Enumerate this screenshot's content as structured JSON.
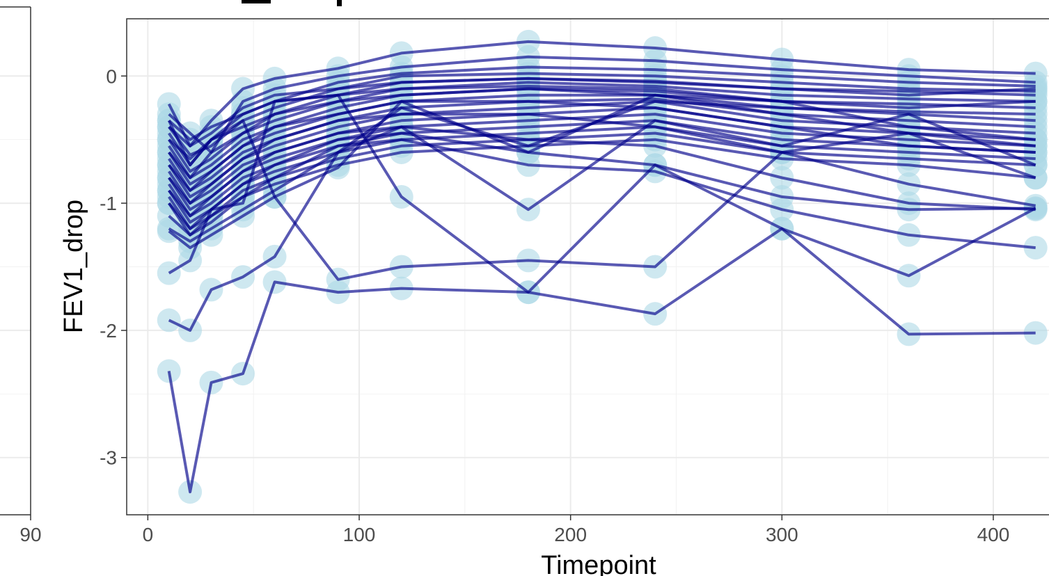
{
  "left_panel": {
    "x_tick_label": "90"
  },
  "chart_data": {
    "type": "line",
    "title": "",
    "xlabel": "Timepoint",
    "ylabel": "FEV1_drop",
    "xlim": [
      -10,
      428
    ],
    "ylim": [
      -3.45,
      0.45
    ],
    "x_ticks": [
      0,
      100,
      200,
      300,
      400
    ],
    "x_tick_labels": [
      "0",
      "100",
      "200",
      "300",
      "400"
    ],
    "y_ticks": [
      0,
      -1,
      -2,
      -3
    ],
    "y_tick_labels": [
      "0",
      "-1",
      "-2",
      "-3"
    ],
    "grid": true,
    "legend": "none",
    "x": [
      10,
      20,
      30,
      45,
      60,
      90,
      120,
      180,
      240,
      300,
      360,
      420
    ],
    "series": [
      {
        "values": [
          -0.22,
          -0.55,
          -0.35,
          -0.1,
          -0.02,
          0.06,
          0.18,
          0.27,
          0.22,
          0.13,
          0.05,
          0.02
        ]
      },
      {
        "values": [
          -0.3,
          -0.45,
          -0.6,
          -0.2,
          -0.1,
          0.0,
          0.07,
          0.15,
          0.12,
          0.05,
          0.0,
          -0.05
        ]
      },
      {
        "values": [
          -0.35,
          -0.5,
          -0.4,
          -0.3,
          -0.2,
          -0.05,
          0.02,
          0.07,
          0.05,
          0.0,
          -0.05,
          -0.08
        ]
      },
      {
        "values": [
          -0.4,
          -0.62,
          -0.55,
          -0.35,
          -0.25,
          -0.1,
          0.0,
          0.02,
          0.0,
          -0.05,
          -0.1,
          -0.12
        ]
      },
      {
        "values": [
          -0.45,
          -0.7,
          -0.5,
          -0.4,
          -0.3,
          -0.15,
          -0.05,
          -0.02,
          -0.04,
          -0.1,
          -0.12,
          -0.15
        ]
      },
      {
        "values": [
          -0.5,
          -0.75,
          -0.65,
          -0.45,
          -0.35,
          -0.2,
          -0.1,
          -0.05,
          -0.08,
          -0.15,
          -0.18,
          -0.2
        ]
      },
      {
        "values": [
          -0.55,
          -0.8,
          -0.7,
          -0.5,
          -0.4,
          -0.25,
          -0.15,
          -0.1,
          -0.12,
          -0.2,
          -0.22,
          -0.25
        ]
      },
      {
        "values": [
          -0.6,
          -0.85,
          -0.75,
          -0.55,
          -0.45,
          -0.3,
          -0.2,
          -0.15,
          -0.15,
          -0.25,
          -0.28,
          -0.3
        ]
      },
      {
        "values": [
          -0.65,
          -0.9,
          -0.8,
          -0.6,
          -0.5,
          -0.35,
          -0.25,
          -0.2,
          -0.18,
          -0.3,
          -0.35,
          -0.4
        ]
      },
      {
        "values": [
          -0.7,
          -0.95,
          -0.85,
          -0.65,
          -0.55,
          -0.4,
          -0.3,
          -0.25,
          -0.2,
          -0.35,
          -0.4,
          -0.45
        ]
      },
      {
        "values": [
          -0.75,
          -1.0,
          -0.9,
          -0.7,
          -0.6,
          -0.45,
          -0.35,
          -0.3,
          -0.25,
          -0.4,
          -0.45,
          -0.5
        ]
      },
      {
        "values": [
          -0.8,
          -1.05,
          -0.95,
          -0.75,
          -0.65,
          -0.5,
          -0.4,
          -0.35,
          -0.3,
          -0.45,
          -0.5,
          -0.55
        ]
      },
      {
        "values": [
          -0.85,
          -1.1,
          -1.0,
          -0.8,
          -0.7,
          -0.55,
          -0.45,
          -0.4,
          -0.35,
          -0.5,
          -0.55,
          -0.6
        ]
      },
      {
        "values": [
          -0.9,
          -1.15,
          -1.05,
          -0.85,
          -0.75,
          -0.6,
          -0.5,
          -0.45,
          -0.4,
          -0.55,
          -0.6,
          -0.65
        ]
      },
      {
        "values": [
          -0.95,
          -1.2,
          -1.1,
          -0.9,
          -0.8,
          -0.65,
          -0.55,
          -0.5,
          -0.45,
          -0.6,
          -0.65,
          -0.7
        ]
      },
      {
        "values": [
          -1.0,
          -1.25,
          -1.15,
          -0.95,
          -0.85,
          -0.7,
          -0.6,
          -0.55,
          -0.5,
          -0.65,
          -0.7,
          -0.8
        ]
      },
      {
        "values": [
          -0.4,
          -0.55,
          -0.45,
          -0.25,
          -0.15,
          -0.1,
          -0.05,
          -0.02,
          -0.05,
          -0.1,
          -0.15,
          -0.1
        ]
      },
      {
        "values": [
          -0.5,
          -0.65,
          -0.5,
          -0.3,
          -0.2,
          -0.15,
          -0.1,
          -0.08,
          -0.1,
          -0.2,
          -0.25,
          -0.2
        ]
      },
      {
        "values": [
          -0.6,
          -0.8,
          -0.6,
          -0.45,
          -0.3,
          -0.2,
          -0.15,
          -0.1,
          -0.15,
          -0.3,
          -0.45,
          -0.55
        ]
      },
      {
        "values": [
          -0.7,
          -0.9,
          -0.75,
          -0.55,
          -0.4,
          -0.3,
          -0.2,
          -0.2,
          -0.25,
          -0.4,
          -0.55,
          -0.6
        ]
      },
      {
        "values": [
          -0.8,
          -1.0,
          -0.85,
          -0.65,
          -0.5,
          -0.35,
          -0.3,
          -0.3,
          -0.4,
          -0.6,
          -0.85,
          -1.02
        ]
      },
      {
        "values": [
          -0.9,
          -1.1,
          -0.95,
          -0.75,
          -0.6,
          -0.45,
          -0.4,
          -0.5,
          -0.55,
          -0.8,
          -1.0,
          -1.05
        ]
      },
      {
        "values": [
          -1.0,
          -1.2,
          -1.05,
          -0.85,
          -0.7,
          -0.5,
          -0.45,
          -0.6,
          -0.7,
          -0.95,
          -1.05,
          -1.04
        ]
      },
      {
        "values": [
          -1.1,
          -1.25,
          -1.1,
          -0.95,
          -0.8,
          -0.55,
          -0.5,
          -0.7,
          -0.75,
          -1.05,
          -1.25,
          -1.35
        ]
      },
      {
        "values": [
          -1.2,
          -1.3,
          -1.2,
          -1.05,
          -0.9,
          -0.6,
          -0.25,
          -0.55,
          -0.2,
          -0.25,
          -0.3,
          -0.35
        ]
      },
      {
        "values": [
          -1.22,
          -1.35,
          -1.25,
          -1.1,
          -0.95,
          -0.72,
          -0.2,
          -0.6,
          -0.15,
          -0.2,
          -0.4,
          -0.5
        ]
      },
      {
        "values": [
          -0.35,
          -0.7,
          -0.5,
          -0.35,
          -0.95,
          -1.6,
          -1.5,
          -1.45,
          -1.5,
          -0.6,
          -0.45,
          -0.8
        ]
      },
      {
        "values": [
          -1.55,
          -1.45,
          -1.05,
          -1.0,
          -0.2,
          -0.15,
          -0.95,
          -1.7,
          -0.7,
          -1.2,
          -1.57,
          -1.04
        ]
      },
      {
        "values": [
          -1.92,
          -2.0,
          -1.68,
          -1.58,
          -1.42,
          -0.6,
          -0.4,
          -1.05,
          -0.35,
          -0.55,
          -0.3,
          -0.7
        ]
      },
      {
        "values": [
          -2.32,
          -3.27,
          -2.41,
          -2.34,
          -1.62,
          -1.7,
          -1.67,
          -1.7,
          -1.87,
          -1.2,
          -2.03,
          -2.02
        ]
      }
    ]
  }
}
